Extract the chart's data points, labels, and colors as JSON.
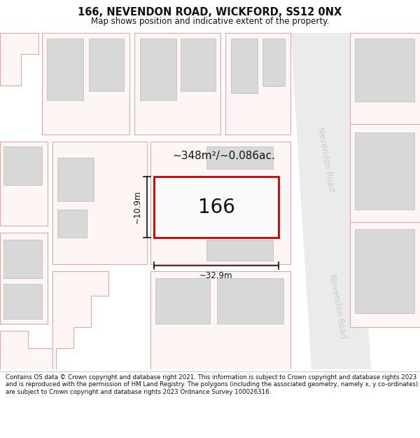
{
  "title": "166, NEVENDON ROAD, WICKFORD, SS12 0NX",
  "subtitle": "Map shows position and indicative extent of the property.",
  "footer": "Contains OS data © Crown copyright and database right 2021. This information is subject to Crown copyright and database rights 2023 and is reproduced with the permission of HM Land Registry. The polygons (including the associated geometry, namely x, y co-ordinates) are subject to Crown copyright and database rights 2023 Ordnance Survey 100026316.",
  "background_color": "#ffffff",
  "plot_outline_color": "#e8a0a0",
  "building_fill": "#d8d8d8",
  "building_outline": "#c8c8c8",
  "target_outline": "#cc0000",
  "road_label_color": "#cccccc",
  "area_label": "~348m²/~0.086ac.",
  "width_label": "~32.9m",
  "height_label": "~10.9m",
  "house_number": "166"
}
